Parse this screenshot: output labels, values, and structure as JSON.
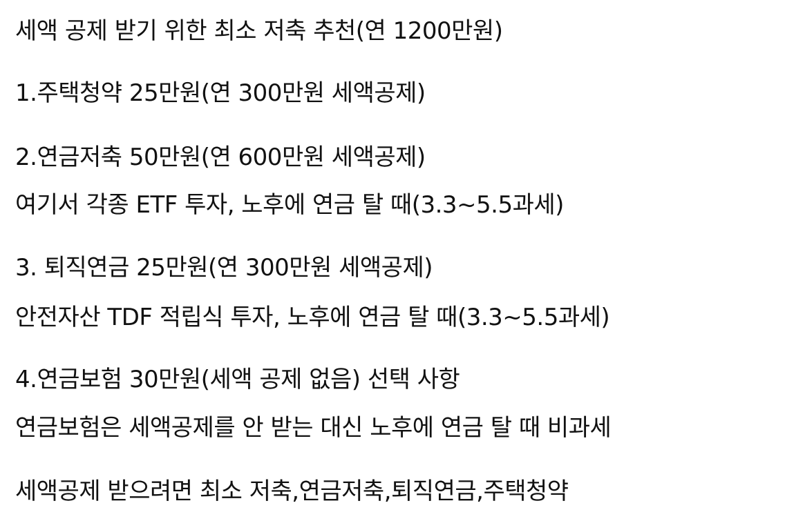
{
  "document": {
    "lines": [
      "세액 공제 받기 위한 최소 저축 추천(연 1200만원)",
      "1.주택청약 25만원(연 300만원 세액공제)",
      "2.연금저축 50만원(연 600만원 세액공제)",
      "여기서 각종 ETF 투자, 노후에 연금 탈 때(3.3~5.5과세)",
      "3. 퇴직연금 25만원(연 300만원 세액공제)",
      "안전자산 TDF 적립식 투자, 노후에 연금 탈 때(3.3~5.5과세)",
      "4.연금보험 30만원(세액 공제 없음) 선택 사항",
      "연금보험은 세액공제를 안 받는 대신 노후에 연금 탈 때 비과세",
      "세액공제 받으려면 최소 저축,연금저축,퇴직연금,주택청약"
    ]
  }
}
